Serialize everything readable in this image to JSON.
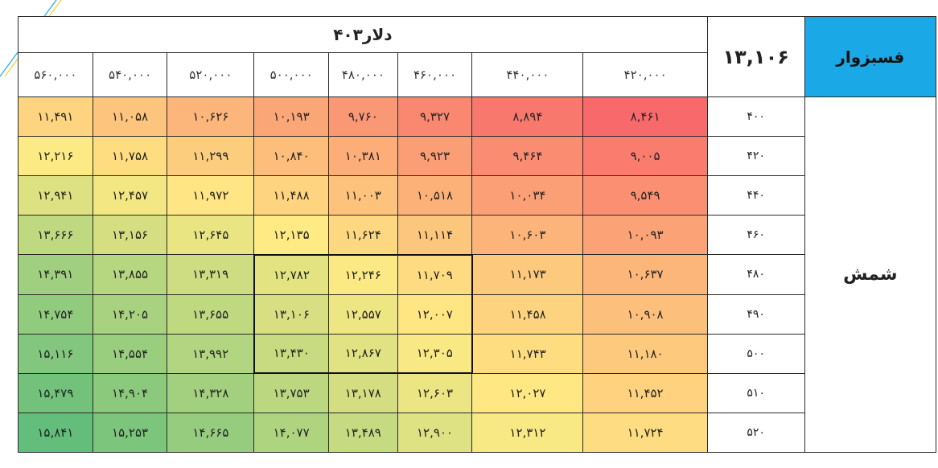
{
  "header": {
    "dollar_label": "دلار۴۰۳",
    "main_value": "۱۳,۱۰۶",
    "city": "فسبزوار",
    "row_group": "شمش"
  },
  "columns": [
    "۵۶۰,۰۰۰",
    "۵۴۰,۰۰۰",
    "۵۲۰,۰۰۰",
    "۵۰۰,۰۰۰",
    "۴۸۰,۰۰۰",
    "۴۶۰,۰۰۰",
    "۴۴۰,۰۰۰",
    "۴۲۰,۰۰۰"
  ],
  "rows": [
    {
      "label": "۴۰۰",
      "cells": [
        "۱۱,۴۹۱",
        "۱۱,۰۵۸",
        "۱۰,۶۲۶",
        "۱۰,۱۹۳",
        "۹,۷۶۰",
        "۹,۳۲۷",
        "۸,۸۹۴",
        "۸,۴۶۱"
      ]
    },
    {
      "label": "۴۲۰",
      "cells": [
        "۱۲,۲۱۶",
        "۱۱,۷۵۸",
        "۱۱,۲۹۹",
        "۱۰,۸۴۰",
        "۱۰,۳۸۱",
        "۹,۹۲۳",
        "۹,۴۶۴",
        "۹,۰۰۵"
      ]
    },
    {
      "label": "۴۴۰",
      "cells": [
        "۱۲,۹۴۱",
        "۱۲,۴۵۷",
        "۱۱,۹۷۲",
        "۱۱,۴۸۸",
        "۱۱,۰۰۳",
        "۱۰,۵۱۸",
        "۱۰,۰۳۴",
        "۹,۵۴۹"
      ]
    },
    {
      "label": "۴۶۰",
      "cells": [
        "۱۳,۶۶۶",
        "۱۳,۱۵۶",
        "۱۲,۶۴۵",
        "۱۲,۱۳۵",
        "۱۱,۶۲۴",
        "۱۱,۱۱۴",
        "۱۰,۶۰۳",
        "۱۰,۰۹۳"
      ]
    },
    {
      "label": "۴۸۰",
      "cells": [
        "۱۴,۳۹۱",
        "۱۳,۸۵۵",
        "۱۳,۳۱۹",
        "۱۲,۷۸۲",
        "۱۲,۲۴۶",
        "۱۱,۷۰۹",
        "۱۱,۱۷۳",
        "۱۰,۶۳۷"
      ]
    },
    {
      "label": "۴۹۰",
      "cells": [
        "۱۴,۷۵۴",
        "۱۴,۲۰۵",
        "۱۳,۶۵۵",
        "۱۳,۱۰۶",
        "۱۲,۵۵۷",
        "۱۲,۰۰۷",
        "۱۱,۴۵۸",
        "۱۰,۹۰۸"
      ]
    },
    {
      "label": "۵۰۰",
      "cells": [
        "۱۵,۱۱۶",
        "۱۴,۵۵۴",
        "۱۳,۹۹۲",
        "۱۳,۴۳۰",
        "۱۲,۸۶۷",
        "۱۲,۳۰۵",
        "۱۱,۷۴۳",
        "۱۱,۱۸۰"
      ]
    },
    {
      "label": "۵۱۰",
      "cells": [
        "۱۵,۴۷۹",
        "۱۴,۹۰۴",
        "۱۴,۳۲۸",
        "۱۳,۷۵۳",
        "۱۳,۱۷۸",
        "۱۲,۶۰۳",
        "۱۲,۰۲۷",
        "۱۱,۴۵۲"
      ]
    },
    {
      "label": "۵۲۰",
      "cells": [
        "۱۵,۸۴۱",
        "۱۵,۲۵۳",
        "۱۴,۶۶۵",
        "۱۴,۰۷۷",
        "۱۳,۴۸۹",
        "۱۲,۹۰۰",
        "۱۲,۳۱۲",
        "۱۱,۷۲۴"
      ]
    }
  ],
  "cell_values": [
    [
      11491,
      11058,
      10626,
      10193,
      9760,
      9327,
      8894,
      8461
    ],
    [
      12216,
      11758,
      11299,
      10840,
      10381,
      9923,
      9464,
      9005
    ],
    [
      12941,
      12457,
      11972,
      11488,
      11003,
      10518,
      10034,
      9549
    ],
    [
      13666,
      13156,
      12645,
      12135,
      11624,
      11114,
      10603,
      10093
    ],
    [
      14391,
      13855,
      13319,
      12782,
      12246,
      11709,
      11173,
      10637
    ],
    [
      14754,
      14205,
      13655,
      13106,
      12557,
      12007,
      11458,
      10908
    ],
    [
      15116,
      14554,
      13992,
      13430,
      12867,
      12305,
      11743,
      11180
    ],
    [
      15479,
      14904,
      14328,
      13753,
      13178,
      12603,
      12027,
      11452
    ],
    [
      15841,
      15253,
      14665,
      14077,
      13489,
      12900,
      12312,
      11724
    ]
  ],
  "highlight_box": {
    "rows": [
      4,
      6
    ],
    "cols": [
      3,
      5
    ]
  },
  "colors": {
    "low": "#f8696b",
    "mid": "#ffeb84",
    "high": "#63be7b",
    "city_bg": "#1ba8e6",
    "decor_line": "#1ba8e6",
    "decor_line2": "#f2c200"
  }
}
